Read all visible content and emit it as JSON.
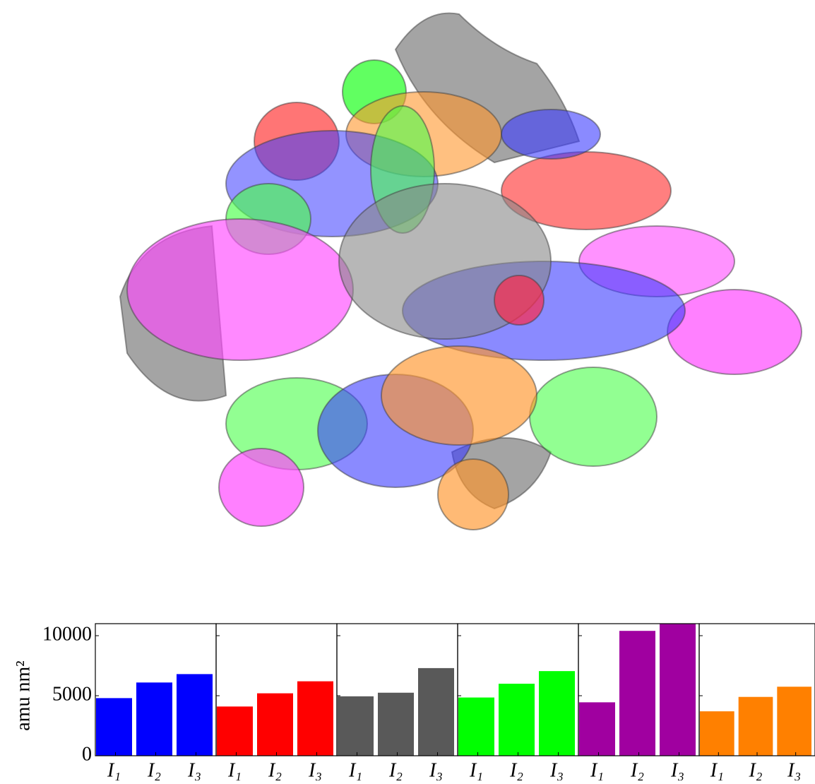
{
  "chart_data": [
    {
      "type": "bar",
      "ylabel": "amu nm²",
      "categories": [
        "I₁",
        "I₂",
        "I₃"
      ],
      "values": [
        4800,
        6100,
        6800
      ],
      "color": "#0000ff",
      "ylim": [
        0,
        11000
      ],
      "yticks": [
        0,
        5000,
        10000
      ]
    },
    {
      "type": "bar",
      "categories": [
        "I₁",
        "I₂",
        "I₃"
      ],
      "values": [
        4100,
        5200,
        6200
      ],
      "color": "#ff0000",
      "ylim": [
        0,
        11000
      ]
    },
    {
      "type": "bar",
      "categories": [
        "I₁",
        "I₂",
        "I₃"
      ],
      "values": [
        4950,
        5250,
        7300
      ],
      "color": "#595959",
      "ylim": [
        0,
        11000
      ]
    },
    {
      "type": "bar",
      "categories": [
        "I₁",
        "I₂",
        "I₃"
      ],
      "values": [
        4850,
        6000,
        7050
      ],
      "color": "#00ff00",
      "ylim": [
        0,
        11000
      ]
    },
    {
      "type": "bar",
      "categories": [
        "I₁",
        "I₂",
        "I₃"
      ],
      "values": [
        4450,
        10400,
        11100
      ],
      "color": "#a000a0",
      "ylim": [
        0,
        11000
      ]
    },
    {
      "type": "bar",
      "categories": [
        "I₁",
        "I₂",
        "I₃"
      ],
      "values": [
        3700,
        4900,
        5750
      ],
      "color": "#ff8000",
      "ylim": [
        0,
        11000
      ]
    }
  ]
}
